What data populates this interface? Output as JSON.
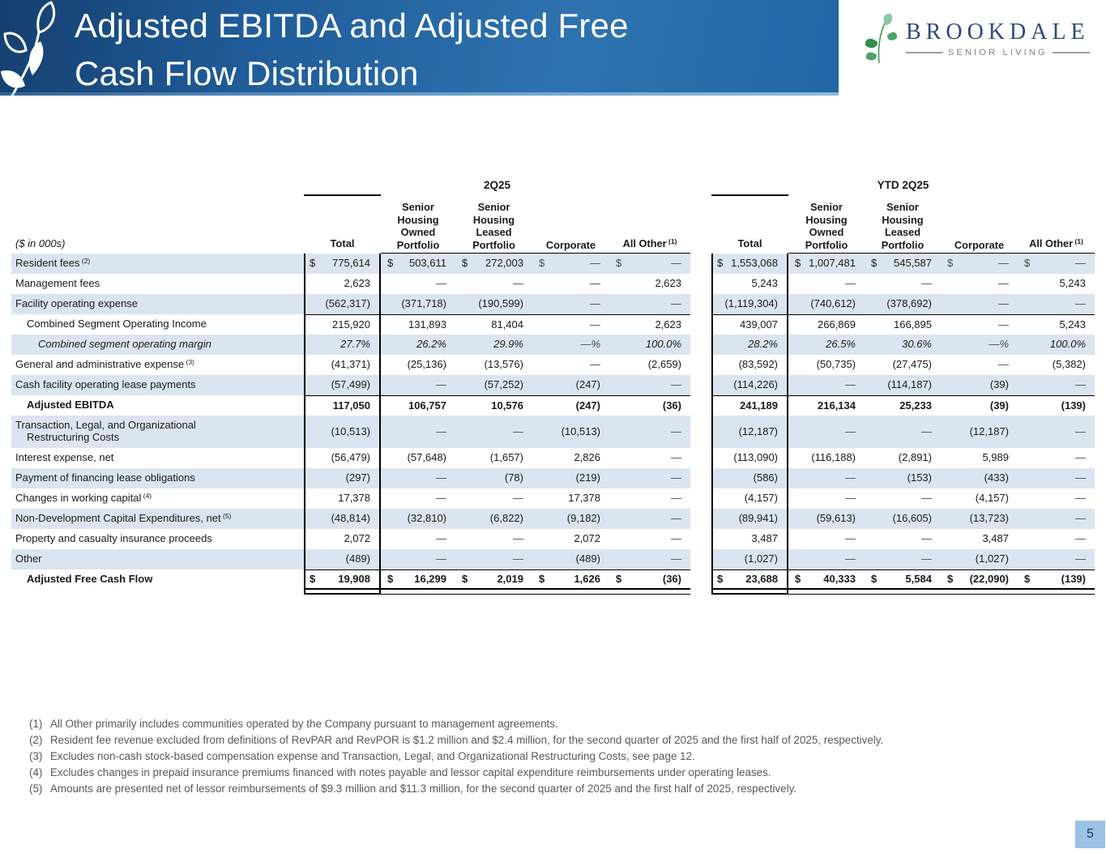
{
  "slide": {
    "title_line1": "Adjusted EBITDA and Adjusted Free",
    "title_line2": "Cash Flow Distribution",
    "page_number": "5"
  },
  "logo": {
    "brand": "BROOKDALE",
    "tagline": "SENIOR LIVING"
  },
  "colors": {
    "band_dark": "#153f6f",
    "band_light": "#2d73af",
    "row_stripe": "#dbe5f1",
    "brand_navy": "#2b4a7b",
    "footnote_gray": "#595959",
    "page_badge_blue": "#9cc2e5"
  },
  "table": {
    "units_label": "($ in 000s)",
    "groups": [
      {
        "label": "2Q25",
        "total_header": "Total",
        "segment_headers": [
          {
            "lines": [
              "Senior",
              "Housing",
              "Owned",
              "Portfolio"
            ]
          },
          {
            "lines": [
              "Senior",
              "Housing",
              "Leased",
              "Portfolio"
            ]
          },
          {
            "lines": [
              "Corporate"
            ]
          },
          {
            "lines": [
              "All Other"
            ],
            "sup": "(1)"
          }
        ]
      },
      {
        "label": "YTD 2Q25",
        "total_header": "Total",
        "segment_headers": [
          {
            "lines": [
              "Senior",
              "Housing",
              "Owned",
              "Portfolio"
            ]
          },
          {
            "lines": [
              "Senior",
              "Housing",
              "Leased",
              "Portfolio"
            ]
          },
          {
            "lines": [
              "Corporate"
            ]
          },
          {
            "lines": [
              "All Other"
            ],
            "sup": "(1)"
          }
        ]
      }
    ],
    "rows": [
      {
        "label": "Resident fees",
        "sup": "(2)",
        "dollar": true,
        "cells": [
          "775,614",
          "503,611",
          "272,003",
          "—",
          "—",
          "1,553,068",
          "1,007,481",
          "545,587",
          "—",
          "—"
        ]
      },
      {
        "label": "Management fees",
        "cells": [
          "2,623",
          "—",
          "—",
          "—",
          "2,623",
          "5,243",
          "—",
          "—",
          "—",
          "5,243"
        ]
      },
      {
        "label": "Facility operating expense",
        "cells": [
          "(562,317)",
          "(371,718)",
          "(190,599)",
          "—",
          "—",
          "(1,119,304)",
          "(740,612)",
          "(378,692)",
          "—",
          "—"
        ]
      },
      {
        "label": "Combined Segment Operating Income",
        "indent": 1,
        "cells": [
          "215,920",
          "131,893",
          "81,404",
          "—",
          "2,623",
          "439,007",
          "266,869",
          "166,895",
          "—",
          "5,243"
        ]
      },
      {
        "label": "Combined segment operating margin",
        "indent": 2,
        "emphasis": "italic",
        "cells": [
          "27.7%",
          "26.2%",
          "29.9%",
          "—%",
          "100.0%",
          "28.2%",
          "26.5%",
          "30.6%",
          "—%",
          "100.0%"
        ]
      },
      {
        "label": "General and administrative expense",
        "sup": "(3)",
        "cells": [
          "(41,371)",
          "(25,136)",
          "(13,576)",
          "—",
          "(2,659)",
          "(83,592)",
          "(50,735)",
          "(27,475)",
          "—",
          "(5,382)"
        ]
      },
      {
        "label": "Cash facility operating lease payments",
        "cells": [
          "(57,499)",
          "—",
          "(57,252)",
          "(247)",
          "—",
          "(114,226)",
          "—",
          "(114,187)",
          "(39)",
          "—"
        ]
      },
      {
        "label": "Adjusted EBITDA",
        "indent": 1,
        "emphasis": "bold",
        "cells": [
          "117,050",
          "106,757",
          "10,576",
          "(247)",
          "(36)",
          "241,189",
          "216,134",
          "25,233",
          "(39)",
          "(139)"
        ]
      },
      {
        "label": "Transaction, Legal, and Organizational",
        "label2": "Restructuring Costs",
        "tall": true,
        "cells": [
          "(10,513)",
          "—",
          "—",
          "(10,513)",
          "—",
          "(12,187)",
          "—",
          "—",
          "(12,187)",
          "—"
        ]
      },
      {
        "label": "Interest expense, net",
        "cells": [
          "(56,479)",
          "(57,648)",
          "(1,657)",
          "2,826",
          "—",
          "(113,090)",
          "(116,188)",
          "(2,891)",
          "5,989",
          "—"
        ]
      },
      {
        "label": "Payment of financing lease obligations",
        "cells": [
          "(297)",
          "—",
          "(78)",
          "(219)",
          "—",
          "(586)",
          "—",
          "(153)",
          "(433)",
          "—"
        ]
      },
      {
        "label": "Changes in working capital",
        "sup": "(4)",
        "cells": [
          "17,378",
          "—",
          "—",
          "17,378",
          "—",
          "(4,157)",
          "—",
          "—",
          "(4,157)",
          "—"
        ]
      },
      {
        "label": "Non-Development Capital Expenditures, net",
        "sup": "(5)",
        "cells": [
          "(48,814)",
          "(32,810)",
          "(6,822)",
          "(9,182)",
          "—",
          "(89,941)",
          "(59,613)",
          "(16,605)",
          "(13,723)",
          "—"
        ]
      },
      {
        "label": "Property and casualty insurance proceeds",
        "cells": [
          "2,072",
          "—",
          "—",
          "2,072",
          "—",
          "3,487",
          "—",
          "—",
          "3,487",
          "—"
        ]
      },
      {
        "label": "Other",
        "cells": [
          "(489)",
          "—",
          "—",
          "(489)",
          "—",
          "(1,027)",
          "—",
          "—",
          "(1,027)",
          "—"
        ]
      },
      {
        "label": "Adjusted Free Cash Flow",
        "indent": 1,
        "emphasis": "bold",
        "dollar": true,
        "cells": [
          "19,908",
          "16,299",
          "2,019",
          "1,626",
          "(36)",
          "23,688",
          "40,333",
          "5,584",
          "(22,090)",
          "(139)"
        ]
      }
    ]
  },
  "footnotes": [
    {
      "num": "(1)",
      "text": "All Other primarily includes communities operated by the Company pursuant to management agreements."
    },
    {
      "num": "(2)",
      "text": "Resident fee revenue excluded from definitions of RevPAR and RevPOR is $1.2 million and $2.4 million, for the second quarter of 2025 and the first half of 2025, respectively."
    },
    {
      "num": "(3)",
      "text": "Excludes non-cash stock-based compensation expense and Transaction, Legal, and Organizational Restructuring Costs, see page 12."
    },
    {
      "num": "(4)",
      "text": "Excludes changes in prepaid insurance premiums financed with notes payable and lessor capital expenditure reimbursements under operating leases."
    },
    {
      "num": "(5)",
      "text": "Amounts are presented net of lessor reimbursements of $9.3 million and $11.3 million, for the second quarter of 2025 and the first half of 2025, respectively."
    }
  ]
}
